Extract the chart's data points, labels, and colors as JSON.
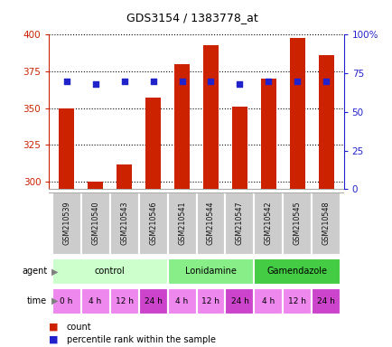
{
  "title": "GDS3154 / 1383778_at",
  "samples": [
    "GSM210539",
    "GSM210540",
    "GSM210543",
    "GSM210546",
    "GSM210541",
    "GSM210544",
    "GSM210547",
    "GSM210542",
    "GSM210545",
    "GSM210548"
  ],
  "counts": [
    350,
    300,
    312,
    357,
    380,
    393,
    351,
    370,
    398,
    386
  ],
  "percentiles": [
    70,
    68,
    70,
    70,
    70,
    70,
    68,
    70,
    70,
    70
  ],
  "ymin": 295,
  "ymax": 400,
  "y_ticks": [
    300,
    325,
    350,
    375,
    400
  ],
  "y_right_ticks": [
    0,
    25,
    50,
    75,
    100
  ],
  "y_right_labels": [
    "0",
    "25",
    "50",
    "75",
    "100%"
  ],
  "agent_groups": [
    {
      "label": "control",
      "start": 0,
      "end": 4,
      "color": "#ccffcc"
    },
    {
      "label": "Lonidamine",
      "start": 4,
      "end": 7,
      "color": "#88ee88"
    },
    {
      "label": "Gamendazole",
      "start": 7,
      "end": 10,
      "color": "#44cc44"
    }
  ],
  "time_labels": [
    "0 h",
    "4 h",
    "12 h",
    "24 h",
    "4 h",
    "12 h",
    "24 h",
    "4 h",
    "12 h",
    "24 h"
  ],
  "time_colors": [
    "#ee88ee",
    "#ee88ee",
    "#ee88ee",
    "#cc44cc",
    "#ee88ee",
    "#ee88ee",
    "#cc44cc",
    "#ee88ee",
    "#ee88ee",
    "#cc44cc"
  ],
  "bar_color": "#cc2200",
  "dot_color": "#2222cc",
  "bar_width": 0.55,
  "count_label": "count",
  "percentile_label": "percentile rank within the sample",
  "left_label_color": "#cc2200",
  "right_label_color": "#2222cc",
  "sample_bg": "#cccccc",
  "sample_text_color": "#111111"
}
